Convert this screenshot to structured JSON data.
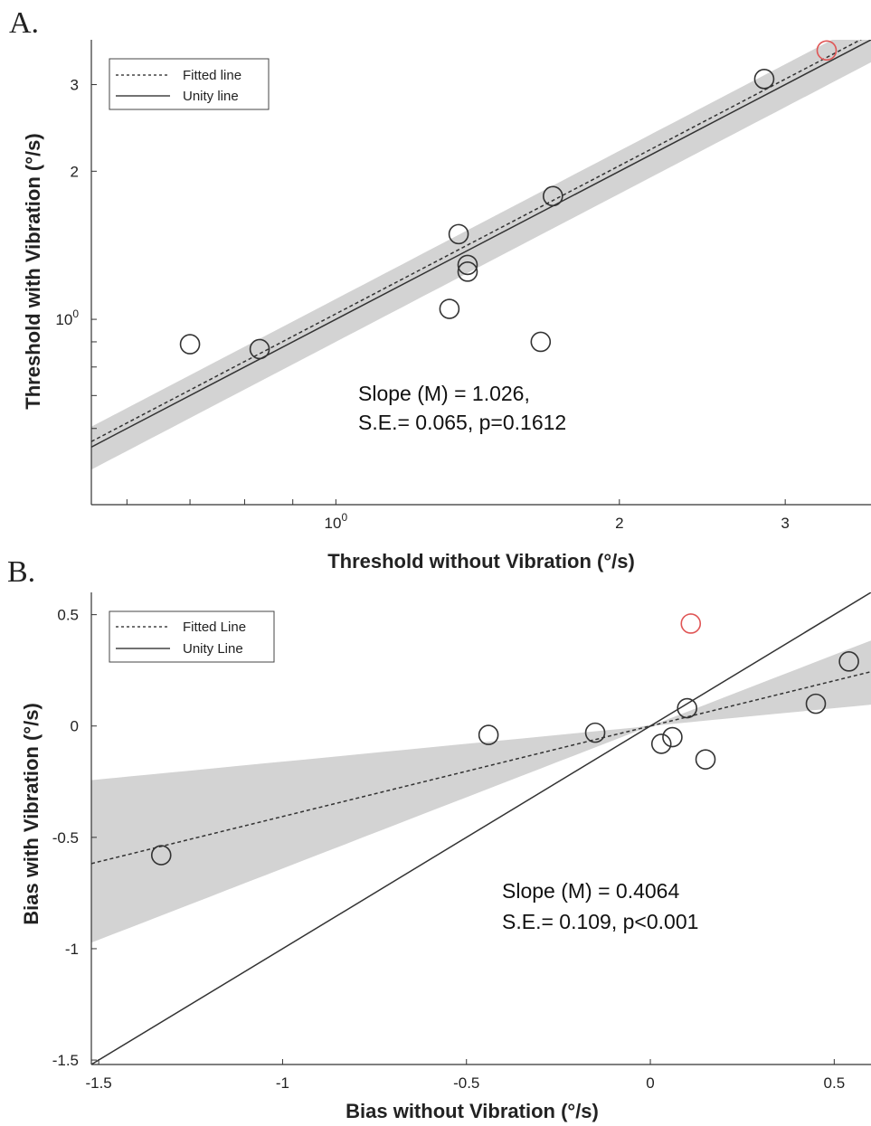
{
  "chart_data": [
    {
      "panel_label": "A.",
      "type": "scatter",
      "log_scale": true,
      "xlabel": "Threshold without Vibration (°/s)",
      "ylabel": "Threshold with Vibration (°/s)",
      "xlim": [
        0.55,
        3.7
      ],
      "ylim": [
        0.42,
        3.7
      ],
      "x_ticks": [
        {
          "value": 1,
          "label": "10^0",
          "base": "10",
          "exp": "0"
        },
        {
          "value": 2,
          "label": "2"
        },
        {
          "value": 3,
          "label": "3"
        }
      ],
      "y_ticks": [
        {
          "value": 1,
          "label": "10^0",
          "base": "10",
          "exp": "0"
        },
        {
          "value": 2,
          "label": "2"
        },
        {
          "value": 3,
          "label": "3"
        }
      ],
      "legend": {
        "position": "top-left",
        "entries": [
          {
            "label": "Fitted line",
            "style": "dotted"
          },
          {
            "label": "Unity line",
            "style": "solid"
          }
        ]
      },
      "annotation": [
        "Slope (M) = 1.026,",
        "S.E.= 0.065, p=0.1612"
      ],
      "fitted_line": {
        "slope": 1.026,
        "intercept": 0.0
      },
      "unity_line": {
        "slope": 1.0,
        "intercept": 0.0
      },
      "confidence_band": {
        "lower_factor": 0.9,
        "upper_factor": 1.1
      },
      "points": [
        {
          "x": 0.7,
          "y": 0.89
        },
        {
          "x": 0.83,
          "y": 0.87
        },
        {
          "x": 1.32,
          "y": 1.05
        },
        {
          "x": 1.35,
          "y": 1.49
        },
        {
          "x": 1.38,
          "y": 1.29
        },
        {
          "x": 1.38,
          "y": 1.25
        },
        {
          "x": 1.65,
          "y": 0.9
        },
        {
          "x": 1.7,
          "y": 1.78
        },
        {
          "x": 2.85,
          "y": 3.08
        },
        {
          "x": 3.32,
          "y": 3.52,
          "highlight": true
        }
      ],
      "colors": {
        "points": "#333333",
        "highlight": "#e05555",
        "band": "#d3d3d3",
        "lines": "#333333"
      }
    },
    {
      "panel_label": "B.",
      "type": "scatter",
      "xlabel": "Bias without Vibration (°/s)",
      "ylabel": "Bias with Vibration (°/s)",
      "xlim": [
        -1.52,
        0.6
      ],
      "ylim": [
        -1.52,
        0.6
      ],
      "x_ticks": [
        {
          "value": -1.5,
          "label": "-1.5"
        },
        {
          "value": -1,
          "label": "-1"
        },
        {
          "value": -0.5,
          "label": "-0.5"
        },
        {
          "value": 0,
          "label": "0"
        },
        {
          "value": 0.5,
          "label": "0.5"
        }
      ],
      "y_ticks": [
        {
          "value": 0.5,
          "label": "0.5"
        },
        {
          "value": 0,
          "label": "0"
        },
        {
          "value": -0.5,
          "label": "-0.5"
        },
        {
          "value": -1,
          "label": "-1"
        },
        {
          "value": -1.5,
          "label": "-1.5"
        }
      ],
      "legend": {
        "position": "top-left",
        "entries": [
          {
            "label": "Fitted Line",
            "style": "dotted"
          },
          {
            "label": "Unity Line",
            "style": "solid"
          }
        ]
      },
      "annotation": [
        "Slope (M) = 0.4064",
        "S.E.= 0.109, p<0.001"
      ],
      "fitted_line": {
        "slope": 0.4064,
        "intercept": 0.0
      },
      "unity_line": {
        "slope": 1.0,
        "intercept": 0.0
      },
      "confidence_band": {
        "lower_slope": 0.16,
        "upper_slope": 0.64
      },
      "points": [
        {
          "x": -1.33,
          "y": -0.58
        },
        {
          "x": -0.44,
          "y": -0.04
        },
        {
          "x": -0.15,
          "y": -0.03
        },
        {
          "x": 0.03,
          "y": -0.08
        },
        {
          "x": 0.06,
          "y": -0.05
        },
        {
          "x": 0.1,
          "y": 0.08
        },
        {
          "x": 0.15,
          "y": -0.15
        },
        {
          "x": 0.45,
          "y": 0.1
        },
        {
          "x": 0.54,
          "y": 0.29
        },
        {
          "x": 0.11,
          "y": 0.46,
          "highlight": true
        }
      ],
      "colors": {
        "points": "#333333",
        "highlight": "#e05555",
        "band": "#d3d3d3",
        "lines": "#333333"
      }
    }
  ]
}
